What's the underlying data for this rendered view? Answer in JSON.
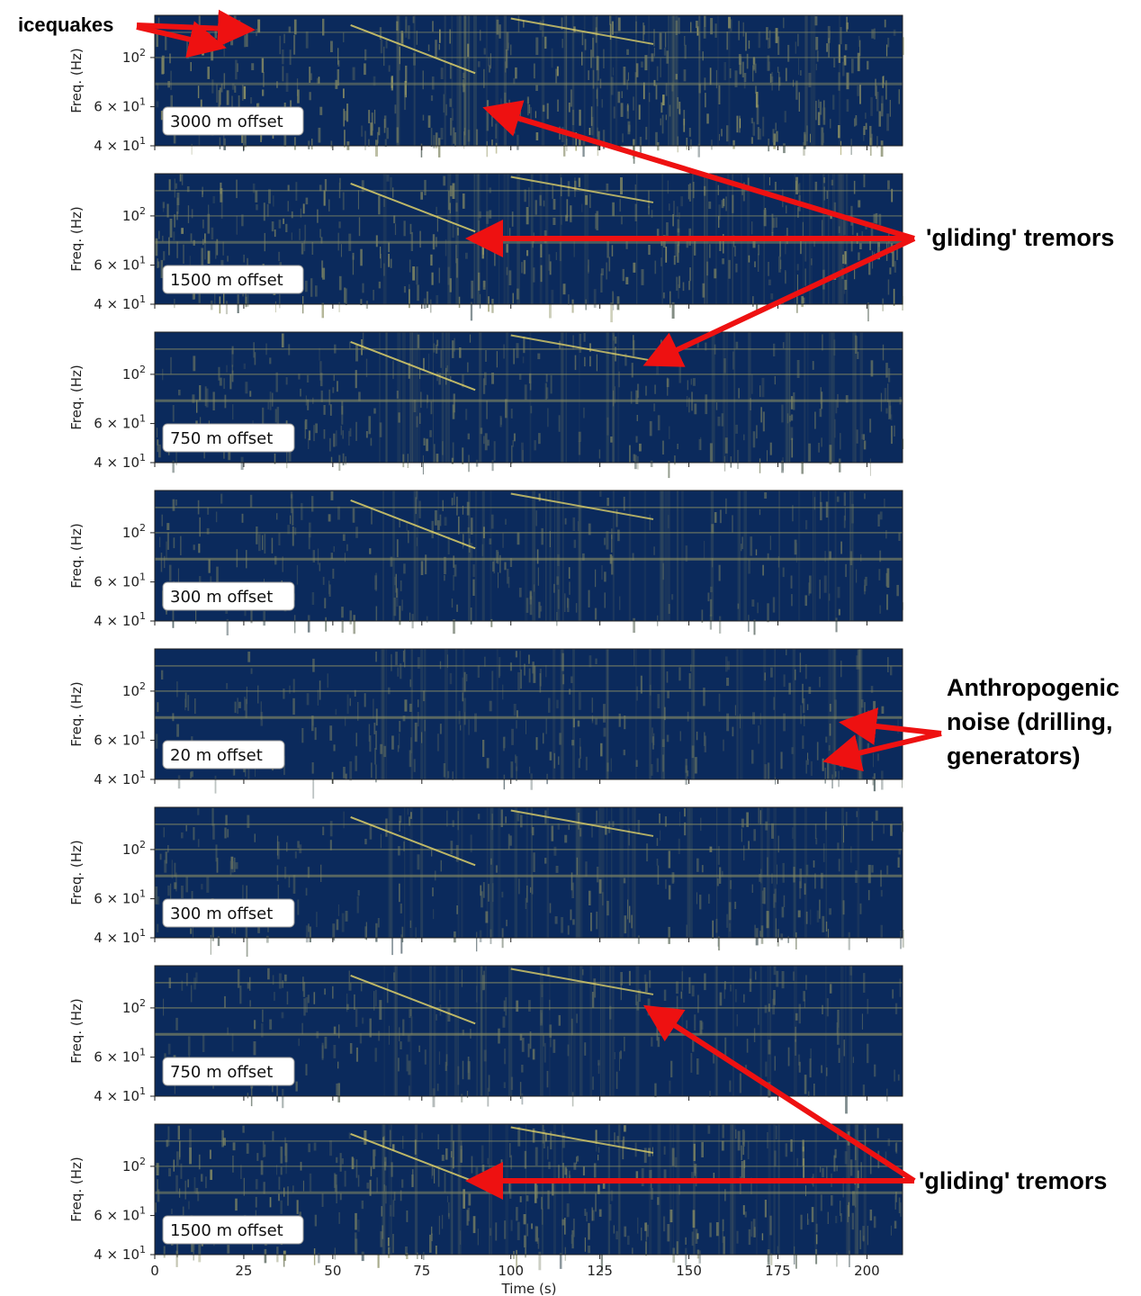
{
  "chart_data": {
    "type": "heatmap",
    "description_type": "spectrogram",
    "x_axis": {
      "label": "Time (s)",
      "range": [
        0,
        210
      ],
      "ticks": [
        0,
        25,
        50,
        75,
        100,
        125,
        150,
        175,
        200
      ],
      "tick_labels": [
        "0",
        "25",
        "50",
        "75",
        "100",
        "125",
        "150",
        "175",
        "200"
      ]
    },
    "y_axis": {
      "label": "Freq. (Hz)",
      "scale": "log",
      "range": [
        40,
        155
      ],
      "ticks": [
        40,
        60,
        100
      ],
      "tick_labels": [
        {
          "base": "4 × 10",
          "exp": "1"
        },
        {
          "base": "6 × 10",
          "exp": "1"
        },
        {
          "base": "10",
          "exp": "2"
        }
      ]
    },
    "colormap": {
      "low": "#0b2a5c",
      "high": "#e9d96a"
    },
    "panels": [
      {
        "label": "3000 m offset",
        "noise_level": 0.62,
        "gliding_tremors": true
      },
      {
        "label": "1500 m offset",
        "noise_level": 0.52,
        "gliding_tremors": true
      },
      {
        "label": "750 m offset",
        "noise_level": 0.35,
        "gliding_tremors": true
      },
      {
        "label": "300 m offset",
        "noise_level": 0.3,
        "gliding_tremors": true
      },
      {
        "label": "20 m offset",
        "noise_level": 0.28,
        "gliding_tremors": false
      },
      {
        "label": "300 m offset",
        "noise_level": 0.3,
        "gliding_tremors": true
      },
      {
        "label": "750 m offset",
        "noise_level": 0.25,
        "gliding_tremors": true
      },
      {
        "label": "1500 m offset",
        "noise_level": 0.48,
        "gliding_tremors": true
      }
    ]
  },
  "annotations": {
    "icequakes": "icequakes",
    "gliding_top": "'gliding' tremors",
    "anthropogenic": [
      "Anthropogenic",
      "noise (drilling,",
      "generators)"
    ],
    "gliding_bottom": "'gliding' tremors"
  },
  "colors": {
    "arrow": "#ee1111",
    "background": "#ffffff"
  }
}
